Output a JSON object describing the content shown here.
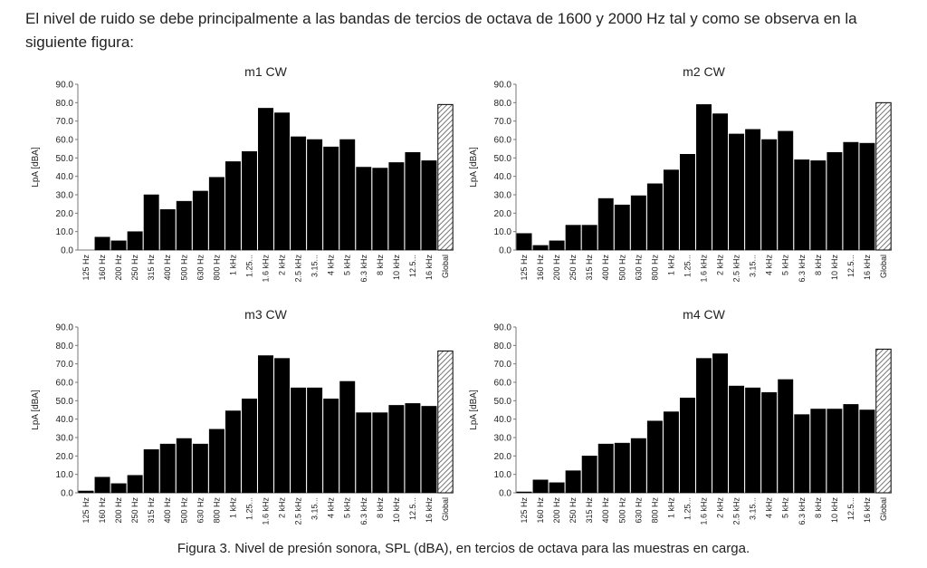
{
  "intro_text": "El nivel de ruido se debe principalmente a las bandas de tercios de octava de 1600 y 2000 Hz tal y como se observa en la siguiente figura:",
  "caption": "Figura 3. Nivel de presión sonora, SPL (dBA), en tercios de octava para las muestras en carga.",
  "colors": {
    "bar": "#000000",
    "global_hatch": "#555555",
    "axis": "#777777"
  },
  "chart_data": [
    {
      "type": "bar",
      "title": "m1 CW",
      "ylabel": "LpA [dBA]",
      "ylim": [
        0,
        90
      ],
      "yticks": [
        "0.0",
        "10.0",
        "20.0",
        "30.0",
        "40.0",
        "50.0",
        "60.0",
        "70.0",
        "80.0",
        "90.0"
      ],
      "categories": [
        "125 Hz",
        "160 Hz",
        "200 Hz",
        "250 Hz",
        "315 Hz",
        "400 Hz",
        "500 Hz",
        "630 Hz",
        "800 Hz",
        "1 kHz",
        "1.25...",
        "1.6 kHz",
        "2 kHz",
        "2.5 kHz",
        "3.15...",
        "4 kHz",
        "5 kHz",
        "6.3 kHz",
        "8 kHz",
        "10 kHz",
        "12.5...",
        "16 kHz",
        "Global"
      ],
      "values": [
        0.0,
        7.0,
        5.0,
        10.0,
        30.0,
        22.0,
        26.5,
        32.0,
        39.5,
        48.0,
        53.5,
        77.0,
        74.5,
        61.5,
        60.0,
        56.0,
        60.0,
        45.0,
        44.5,
        47.5,
        53.0,
        48.5,
        79.0
      ]
    },
    {
      "type": "bar",
      "title": "m2 CW",
      "ylabel": "LpA [dBA]",
      "ylim": [
        0,
        90
      ],
      "yticks": [
        "0.0",
        "10.0",
        "20.0",
        "30.0",
        "40.0",
        "50.0",
        "60.0",
        "70.0",
        "80.0",
        "90.0"
      ],
      "categories": [
        "125 Hz",
        "160 Hz",
        "200 Hz",
        "250 Hz",
        "315 Hz",
        "400 Hz",
        "500 Hz",
        "630 Hz",
        "800 Hz",
        "1 kHz",
        "1.25...",
        "1.6 kHz",
        "2 kHz",
        "2.5 kHz",
        "3.15...",
        "4 kHz",
        "5 kHz",
        "6.3 kHz",
        "8 kHz",
        "10 kHz",
        "12.5...",
        "16 kHz",
        "Global"
      ],
      "values": [
        9.0,
        2.5,
        5.0,
        13.5,
        13.5,
        28.0,
        24.5,
        29.5,
        36.0,
        43.5,
        52.0,
        79.0,
        74.0,
        63.0,
        65.5,
        60.0,
        64.5,
        49.0,
        48.5,
        53.0,
        58.5,
        58.0,
        80.0
      ]
    },
    {
      "type": "bar",
      "title": "m3 CW",
      "ylabel": "LpA [dBA]",
      "ylim": [
        0,
        90
      ],
      "yticks": [
        "0.0",
        "10.0",
        "20.0",
        "30.0",
        "40.0",
        "50.0",
        "60.0",
        "70.0",
        "80.0",
        "90.0"
      ],
      "categories": [
        "125 Hz",
        "160 Hz",
        "200 Hz",
        "250 Hz",
        "315 Hz",
        "400 Hz",
        "500 Hz",
        "630 Hz",
        "800 Hz",
        "1 kHz",
        "1.25...",
        "1.6 kHz",
        "2 kHz",
        "2.5 kHz",
        "3.15...",
        "4 kHz",
        "5 kHz",
        "6.3 kHz",
        "8 kHz",
        "10 kHz",
        "12.5...",
        "16 kHz",
        "Global"
      ],
      "values": [
        1.0,
        8.5,
        5.0,
        9.5,
        23.5,
        26.5,
        29.5,
        26.5,
        34.5,
        44.5,
        51.0,
        74.5,
        73.0,
        57.0,
        57.0,
        51.0,
        60.5,
        43.5,
        43.5,
        47.5,
        48.5,
        47.0,
        77.0
      ]
    },
    {
      "type": "bar",
      "title": "m4 CW",
      "ylabel": "LpA [dBA]",
      "ylim": [
        0,
        90
      ],
      "yticks": [
        "0.0",
        "10.0",
        "20.0",
        "30.0",
        "40.0",
        "50.0",
        "60.0",
        "70.0",
        "80.0",
        "90.0"
      ],
      "categories": [
        "125 Hz",
        "160 Hz",
        "200 Hz",
        "250 Hz",
        "315 Hz",
        "400 Hz",
        "500 Hz",
        "630 Hz",
        "800 Hz",
        "1 kHz",
        "1.25...",
        "1.6 kHz",
        "2 kHz",
        "2.5 kHz",
        "3.15...",
        "4 kHz",
        "5 kHz",
        "6.3 kHz",
        "8 kHz",
        "10 kHz",
        "12.5...",
        "16 kHz",
        "Global"
      ],
      "values": [
        0.5,
        7.0,
        5.5,
        12.0,
        20.0,
        26.5,
        27.0,
        29.5,
        39.0,
        44.0,
        51.5,
        73.0,
        75.5,
        58.0,
        57.0,
        54.5,
        61.5,
        42.5,
        45.5,
        45.5,
        48.0,
        45.0,
        78.0
      ]
    }
  ]
}
